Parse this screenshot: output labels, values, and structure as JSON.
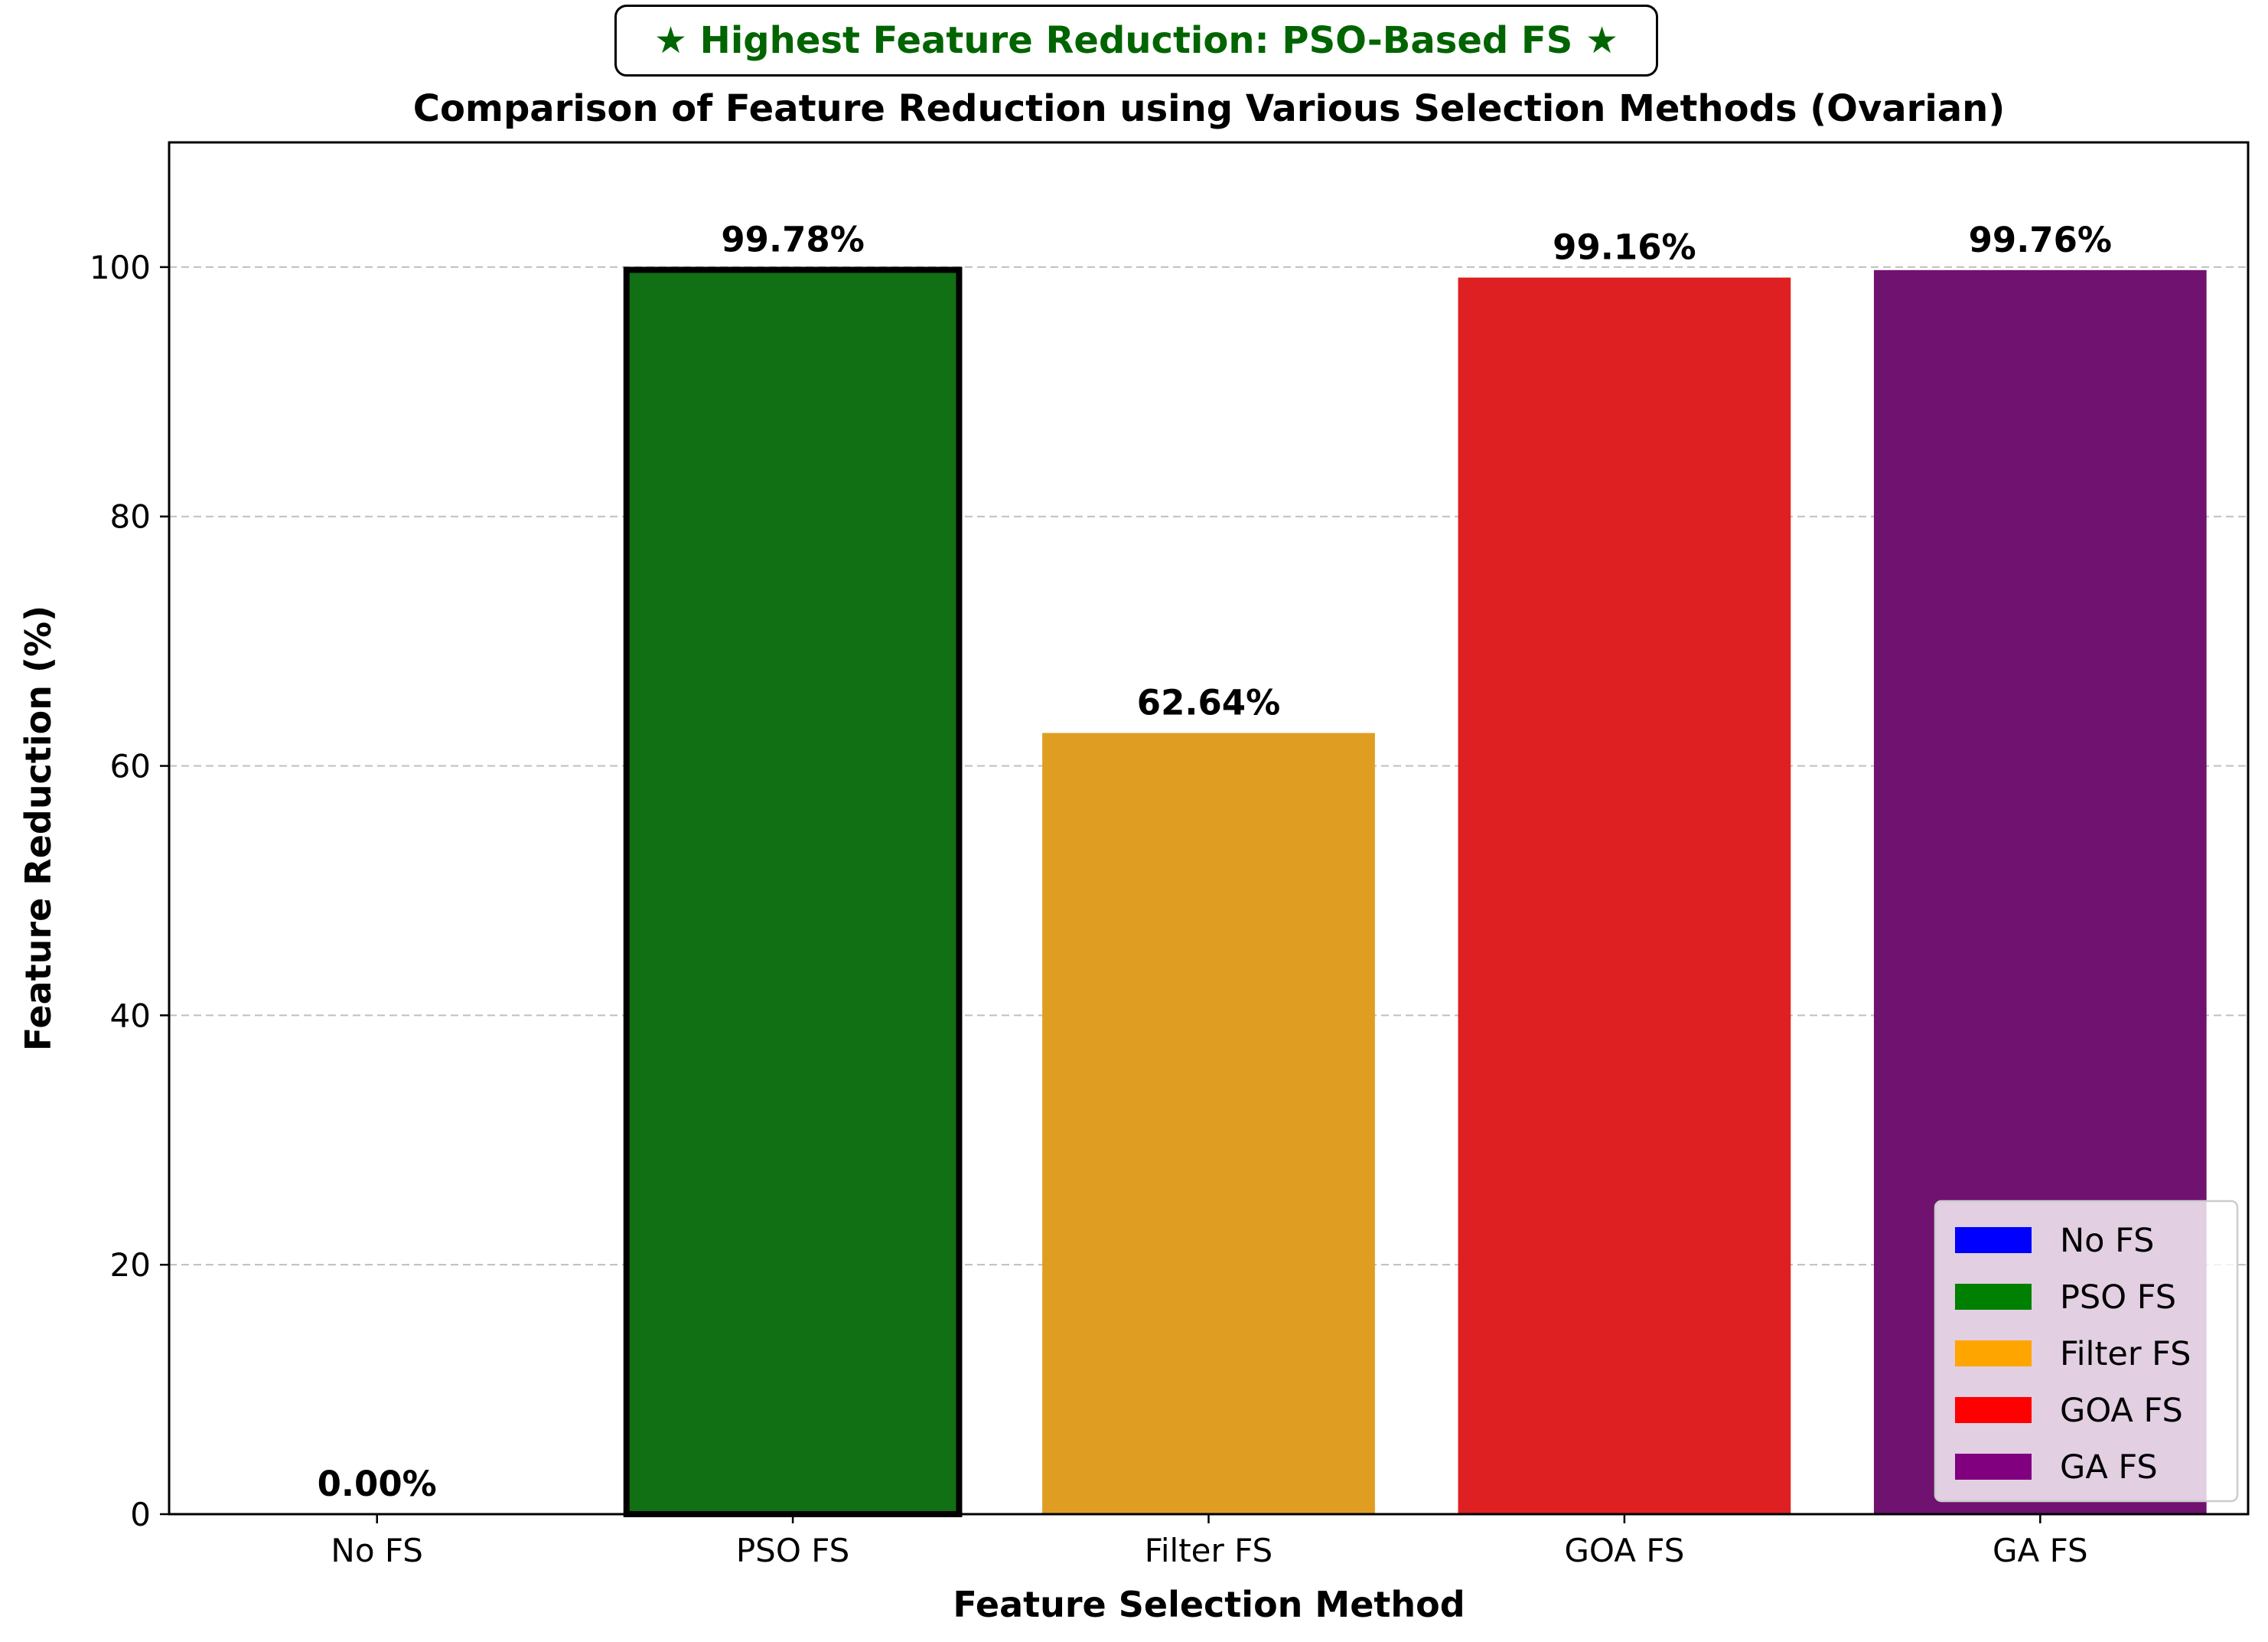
{
  "annotation": "★ Highest Feature Reduction: PSO-Based FS ★",
  "chart_data": {
    "type": "bar",
    "title": "Comparison of Feature Reduction using Various Selection Methods (Ovarian)",
    "xlabel": "Feature Selection Method",
    "ylabel": "Feature Reduction (%)",
    "categories": [
      "No FS",
      "PSO FS",
      "Filter FS",
      "GOA FS",
      "GA FS"
    ],
    "values": [
      0.0,
      99.78,
      62.64,
      99.16,
      99.76
    ],
    "data_labels": [
      "0.00%",
      "99.78%",
      "62.64%",
      "99.16%",
      "99.76%"
    ],
    "colors": [
      "#0000ff",
      "#116f14",
      "#df9d22",
      "#df2022",
      "#701270"
    ],
    "legend_colors": [
      "#0000ff",
      "#008000",
      "#ffa500",
      "#ff0000",
      "#800080"
    ],
    "highlight_category": "PSO FS",
    "ylim": [
      0,
      110
    ],
    "yticks": [
      0,
      20,
      40,
      60,
      80,
      100
    ],
    "grid": "y-dashed",
    "legend": {
      "position": "bottom-right",
      "entries": [
        "No FS",
        "PSO FS",
        "Filter FS",
        "GOA FS",
        "GA FS"
      ]
    }
  }
}
